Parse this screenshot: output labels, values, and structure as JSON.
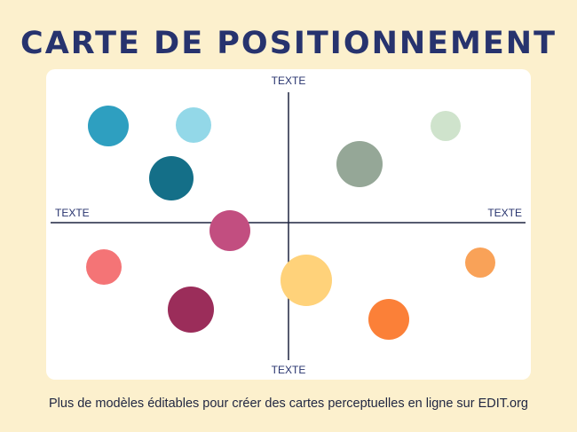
{
  "header": {
    "title": "CARTE DE POSITIONNEMENT"
  },
  "axes": {
    "top": "TEXTE",
    "bottom": "TEXTE",
    "left": "TEXTE",
    "right": "TEXTE"
  },
  "footer": {
    "text": "Plus de modèles éditables pour créer des cartes perceptuelles en ligne sur EDIT.org"
  }
}
